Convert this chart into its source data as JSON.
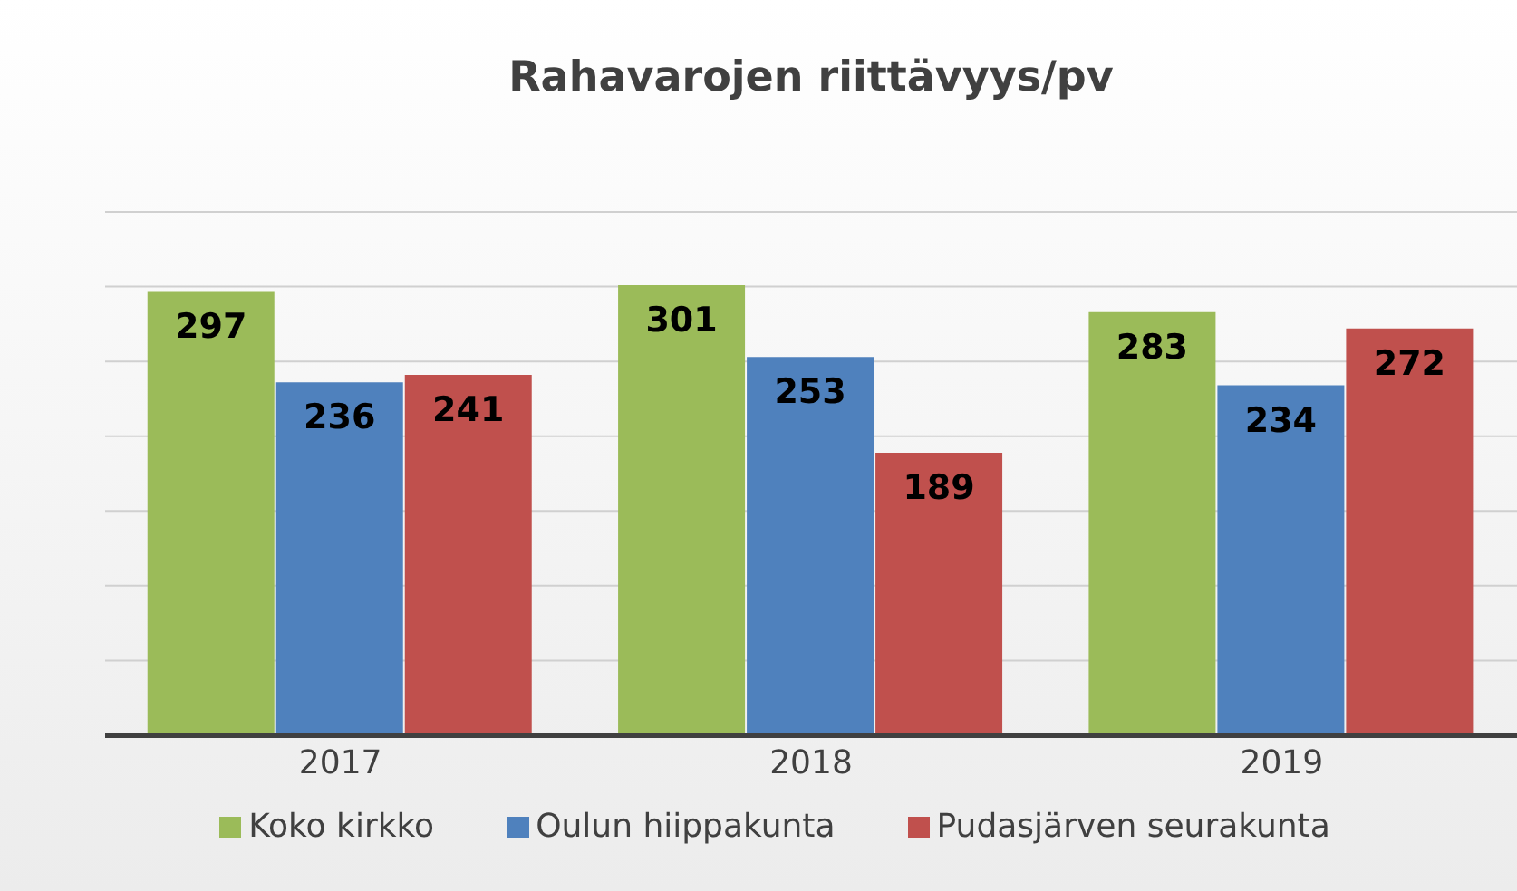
{
  "chart_data": {
    "type": "bar",
    "title": "Rahavarojen riittävyys/pv",
    "categories": [
      "2017",
      "2018",
      "2019"
    ],
    "series": [
      {
        "name": "Koko kirkko",
        "color": "#9bbb59",
        "values": [
          297,
          301,
          283
        ]
      },
      {
        "name": "Oulun hiippakunta",
        "color": "#4f81bd",
        "values": [
          236,
          253,
          234
        ]
      },
      {
        "name": "Pudasjärven seurakunta",
        "color": "#c0504d",
        "values": [
          241,
          189,
          272
        ]
      }
    ],
    "ylim": [
      0,
      350
    ],
    "yticks": [
      {
        "value": 0,
        "label": null
      },
      {
        "value": 50,
        "label": null
      },
      {
        "value": 100,
        "label": null
      },
      {
        "value": 150,
        "label": null
      },
      {
        "value": 200,
        "label": null
      },
      {
        "value": 250,
        "label": null
      },
      {
        "value": 300,
        "label": null
      },
      {
        "value": 350,
        "label": null
      }
    ],
    "tick_labels": "x",
    "grid": "y",
    "legend": "bottom",
    "data_labels": true
  }
}
